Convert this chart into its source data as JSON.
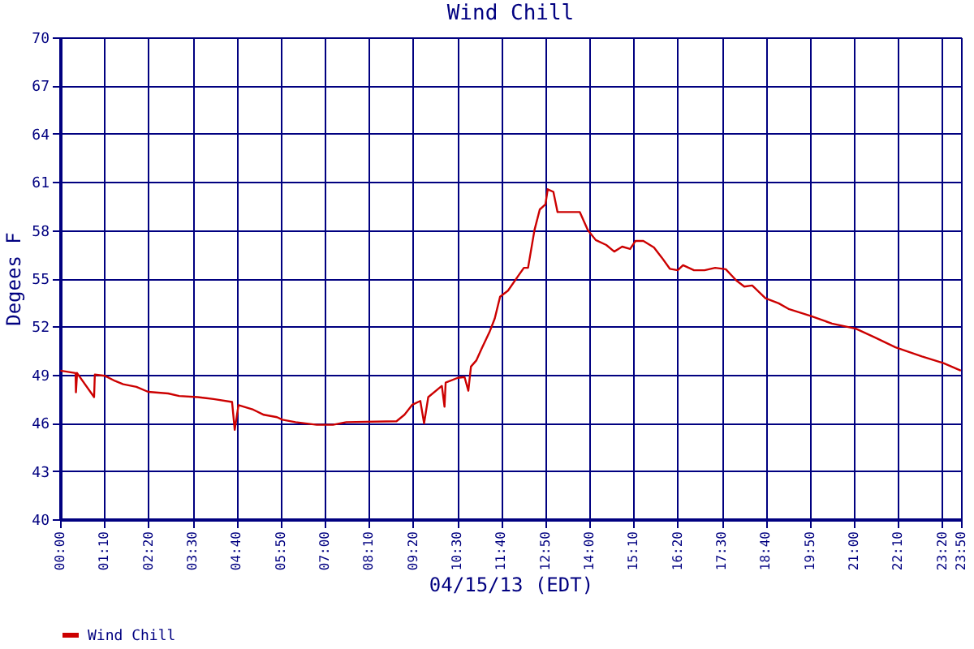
{
  "chart_data": {
    "type": "line",
    "title": "Wind Chill",
    "xlabel": "04/15/13 (EDT)",
    "ylabel": "Degees F",
    "x": [
      0.01,
      0.41,
      0.42,
      0.45,
      0.9,
      0.92,
      1.18,
      1.46,
      1.67,
      2.02,
      2.33,
      2.86,
      3.15,
      3.64,
      4.06,
      4.55,
      4.62,
      4.72,
      5.11,
      5.39,
      5.74,
      5.88,
      6.23,
      6.79,
      7.22,
      7.57,
      8.9,
      9.11,
      9.32,
      9.53,
      9.63,
      9.74,
      10.1,
      10.17,
      10.2,
      10.52,
      10.7,
      10.8,
      10.87,
      11.01,
      11.15,
      11.36,
      11.5,
      11.64,
      11.85,
      12.13,
      12.27,
      12.38,
      12.55,
      12.69,
      12.84,
      12.9,
      13.05,
      13.16,
      13.26,
      13.75,
      13.96,
      14.17,
      14.45,
      14.66,
      14.87,
      15.08,
      15.22,
      15.43,
      15.71,
      15.92,
      16.13,
      16.34,
      16.48,
      16.77,
      17.05,
      17.33,
      17.61,
      17.89,
      18.1,
      18.31,
      18.66,
      19.01,
      19.29,
      19.85,
      20.42,
      21.05,
      21.54,
      22.1,
      22.8,
      23.37,
      23.83
    ],
    "series": [
      {
        "name": "Wind Chill",
        "color": "#cc0000",
        "values": [
          49.25,
          49.1,
          47.9,
          49.1,
          47.6,
          49.0,
          48.93,
          48.6,
          48.4,
          48.24,
          47.93,
          47.83,
          47.67,
          47.6,
          47.48,
          47.3,
          45.56,
          47.1,
          46.82,
          46.5,
          46.35,
          46.19,
          46.04,
          45.88,
          45.88,
          46.04,
          46.1,
          46.5,
          47.13,
          47.36,
          45.97,
          47.6,
          48.3,
          47.0,
          48.5,
          48.8,
          48.85,
          48.0,
          49.5,
          49.88,
          50.6,
          51.65,
          52.5,
          53.85,
          54.23,
          55.18,
          55.65,
          55.65,
          58.0,
          59.28,
          59.6,
          60.54,
          60.38,
          59.12,
          59.12,
          59.12,
          58.0,
          57.38,
          57.07,
          56.66,
          56.97,
          56.82,
          57.32,
          57.32,
          56.92,
          56.28,
          55.59,
          55.5,
          55.81,
          55.5,
          55.5,
          55.65,
          55.56,
          54.86,
          54.48,
          54.55,
          53.76,
          53.44,
          53.07,
          52.66,
          52.18,
          51.86,
          51.33,
          50.7,
          50.13,
          49.72,
          49.25
        ]
      }
    ],
    "xlim": [
      0,
      23.8333
    ],
    "xticks": [
      {
        "value": 0,
        "label": "00:00"
      },
      {
        "value": 1.1667,
        "label": "01:10"
      },
      {
        "value": 2.3333,
        "label": "02:20"
      },
      {
        "value": 3.5,
        "label": "03:30"
      },
      {
        "value": 4.6667,
        "label": "04:40"
      },
      {
        "value": 5.8333,
        "label": "05:50"
      },
      {
        "value": 7,
        "label": "07:00"
      },
      {
        "value": 8.1667,
        "label": "08:10"
      },
      {
        "value": 9.3333,
        "label": "09:20"
      },
      {
        "value": 10.5,
        "label": "10:30"
      },
      {
        "value": 11.6667,
        "label": "11:40"
      },
      {
        "value": 12.8333,
        "label": "12:50"
      },
      {
        "value": 14,
        "label": "14:00"
      },
      {
        "value": 15.1667,
        "label": "15:10"
      },
      {
        "value": 16.3333,
        "label": "16:20"
      },
      {
        "value": 17.5,
        "label": "17:30"
      },
      {
        "value": 18.6667,
        "label": "18:40"
      },
      {
        "value": 19.8333,
        "label": "19:50"
      },
      {
        "value": 21,
        "label": "21:00"
      },
      {
        "value": 22.1667,
        "label": "22:10"
      },
      {
        "value": 23.3333,
        "label": "23:20"
      },
      {
        "value": 23.8333,
        "label": "23:50"
      }
    ],
    "ylim": [
      40,
      70
    ],
    "yticks": [
      40,
      43,
      46,
      49,
      52,
      55,
      58,
      61,
      64,
      67,
      70
    ],
    "grid": true,
    "legend": "bottom"
  }
}
